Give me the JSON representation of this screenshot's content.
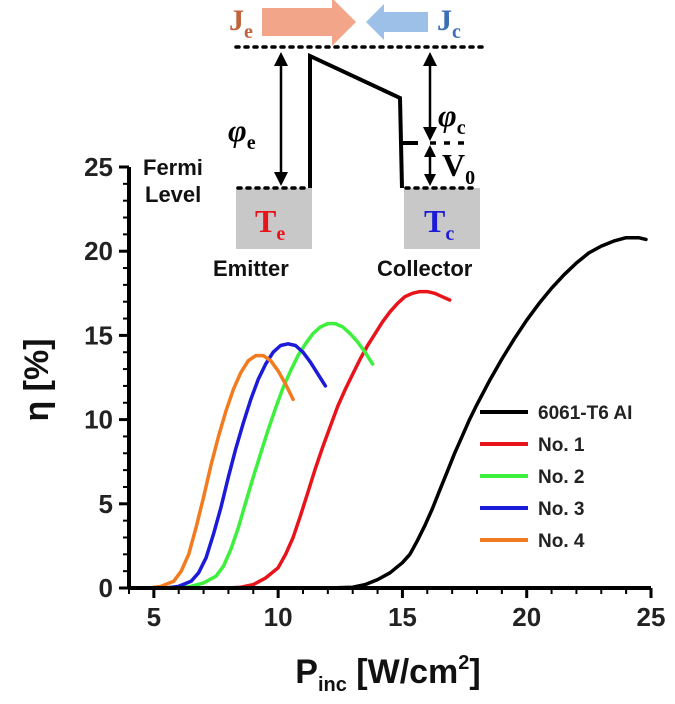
{
  "colors": {
    "series": [
      "#000000",
      "#e8141c",
      "#3df03d",
      "#1b1bd8",
      "#f27a1f"
    ],
    "emitter_temperature": "#e8141c",
    "collector_temperature": "#1b1bd8",
    "emitter_current": "#c0623a",
    "collector_current": "#3a6fb5",
    "emitter_arrow": "#f3a589",
    "collector_arrow": "#9cc0e8",
    "electrode_fill": "#c8c8c8"
  },
  "chart_data": {
    "type": "line",
    "xlabel": "P",
    "xlabel_subscript": "inc",
    "xlabel_units_open": " [W/cm",
    "xlabel_units_power": "2",
    "xlabel_units_close": "]",
    "ylabel": "η [%]",
    "xlim": [
      4,
      25
    ],
    "ylim": [
      0,
      25
    ],
    "xticks": [
      5,
      10,
      15,
      20,
      25
    ],
    "yticks": [
      0,
      5,
      10,
      15,
      20,
      25
    ],
    "grid": false,
    "legend_position": "lower-right",
    "series": [
      {
        "name": "6061-T6 AI",
        "color": "#000000",
        "x": [
          11.0,
          12.0,
          13.0,
          13.5,
          14.0,
          14.5,
          15.0,
          15.3,
          15.6,
          15.9,
          16.2,
          16.5,
          16.8,
          17.1,
          17.4,
          17.7,
          18.0,
          18.5,
          19.0,
          19.5,
          20.0,
          20.5,
          21.0,
          21.5,
          22.0,
          22.5,
          23.0,
          23.5,
          24.0,
          24.5,
          24.8
        ],
        "y": [
          0.0,
          0.0,
          0.05,
          0.2,
          0.5,
          0.9,
          1.5,
          2.0,
          2.8,
          3.7,
          4.7,
          5.8,
          6.9,
          8.0,
          9.0,
          10.0,
          10.9,
          12.3,
          13.6,
          14.8,
          15.9,
          16.9,
          17.8,
          18.6,
          19.3,
          19.9,
          20.3,
          20.6,
          20.8,
          20.8,
          20.7
        ]
      },
      {
        "name": "No. 1",
        "color": "#e8141c",
        "x": [
          8.0,
          8.5,
          9.0,
          9.5,
          10.0,
          10.3,
          10.6,
          10.9,
          11.2,
          11.5,
          11.8,
          12.1,
          12.4,
          12.7,
          13.0,
          13.3,
          13.6,
          13.9,
          14.2,
          14.5,
          14.8,
          15.1,
          15.4,
          15.7,
          16.0,
          16.3,
          16.6,
          16.9
        ],
        "y": [
          0.0,
          0.05,
          0.2,
          0.6,
          1.2,
          2.0,
          3.0,
          4.3,
          5.7,
          7.1,
          8.4,
          9.6,
          10.8,
          11.8,
          12.7,
          13.6,
          14.4,
          15.1,
          15.8,
          16.4,
          16.9,
          17.3,
          17.5,
          17.6,
          17.6,
          17.5,
          17.3,
          17.1
        ]
      },
      {
        "name": "No. 2",
        "color": "#3df03d",
        "x": [
          6.0,
          6.5,
          7.0,
          7.5,
          7.8,
          8.1,
          8.4,
          8.7,
          9.0,
          9.3,
          9.6,
          9.9,
          10.2,
          10.5,
          10.8,
          11.1,
          11.4,
          11.7,
          12.0,
          12.3,
          12.6,
          12.9,
          13.2,
          13.5,
          13.8
        ],
        "y": [
          0.0,
          0.1,
          0.3,
          0.7,
          1.3,
          2.3,
          3.6,
          5.1,
          6.6,
          8.0,
          9.4,
          10.7,
          11.9,
          12.9,
          13.8,
          14.5,
          15.1,
          15.5,
          15.7,
          15.7,
          15.5,
          15.1,
          14.6,
          14.0,
          13.3
        ]
      },
      {
        "name": "No. 3",
        "color": "#1b1bd8",
        "x": [
          5.5,
          6.0,
          6.5,
          6.8,
          7.1,
          7.4,
          7.7,
          8.0,
          8.3,
          8.6,
          8.9,
          9.2,
          9.5,
          9.8,
          10.1,
          10.4,
          10.7,
          11.0,
          11.3,
          11.6,
          11.9
        ],
        "y": [
          0.0,
          0.1,
          0.4,
          0.9,
          1.8,
          3.2,
          4.8,
          6.6,
          8.3,
          9.8,
          11.2,
          12.4,
          13.3,
          14.0,
          14.4,
          14.5,
          14.4,
          14.0,
          13.4,
          12.7,
          12.0
        ]
      },
      {
        "name": "No. 4",
        "color": "#f27a1f",
        "x": [
          4.8,
          5.3,
          5.8,
          6.1,
          6.4,
          6.7,
          7.0,
          7.3,
          7.6,
          7.9,
          8.2,
          8.5,
          8.8,
          9.1,
          9.4,
          9.7,
          10.0,
          10.3,
          10.6
        ],
        "y": [
          0.0,
          0.1,
          0.4,
          1.0,
          2.0,
          3.6,
          5.4,
          7.3,
          9.0,
          10.5,
          11.8,
          12.8,
          13.5,
          13.8,
          13.8,
          13.5,
          12.9,
          12.1,
          11.2
        ]
      }
    ]
  },
  "inset": {
    "emitter_current": "J",
    "emitter_current_sub": "e",
    "collector_current": "J",
    "collector_current_sub": "c",
    "emitter_work_function": "φ",
    "emitter_work_function_sub": "e",
    "collector_work_function": "φ",
    "collector_work_function_sub": "c",
    "voltage": "V",
    "voltage_sub": "0",
    "fermi_line1": "Fermi",
    "fermi_line2": "Level",
    "emitter_temp": "T",
    "emitter_temp_sub": "e",
    "collector_temp": "T",
    "collector_temp_sub": "c",
    "emitter_label": "Emitter",
    "collector_label": "Collector"
  }
}
